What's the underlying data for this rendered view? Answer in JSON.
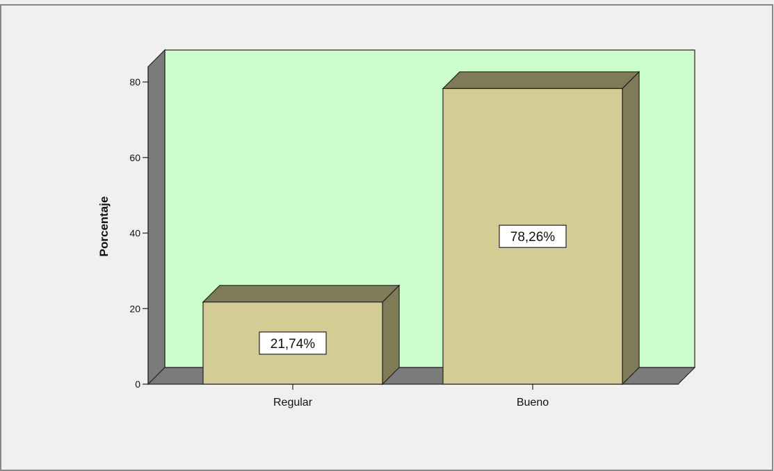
{
  "chart_data": {
    "type": "bar",
    "categories": [
      "Regular",
      "Bueno"
    ],
    "values": [
      21.74,
      78.26
    ],
    "data_labels": [
      "21,74%",
      "78,26%"
    ],
    "ylabel": "Porcentaje",
    "xlabel": "",
    "ylim": [
      0,
      80
    ],
    "yticks": [
      0,
      20,
      40,
      60,
      80
    ],
    "grid": false,
    "style": "3d-bar",
    "colors": {
      "background": "#f0f0f0",
      "plot_area": "#ccfdcc",
      "bar_front": "#d3cc95",
      "bar_side": "#7f7b57",
      "floor": "#7b7b7b",
      "frame": "#888888"
    }
  }
}
